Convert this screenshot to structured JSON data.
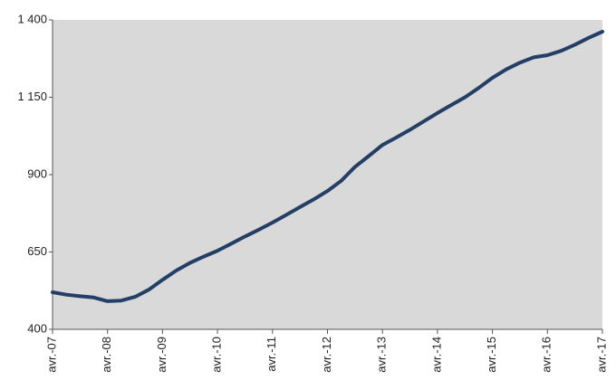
{
  "chart_data": {
    "type": "line",
    "categories": [
      "avr.-07",
      null,
      null,
      null,
      "avr.-08",
      null,
      null,
      null,
      "avr.-09",
      null,
      null,
      null,
      "avr.-10",
      null,
      null,
      null,
      "avr.-11",
      null,
      null,
      null,
      "avr.-12",
      null,
      null,
      null,
      "avr.-13",
      null,
      null,
      null,
      "avr.-14",
      null,
      null,
      null,
      "avr.-15",
      null,
      null,
      null,
      "avr.-16",
      null,
      null,
      null,
      "avr.-17"
    ],
    "series": [
      {
        "color": "#243f66",
        "values": [
          520,
          512,
          507,
          503,
          491,
          493,
          505,
          528,
          560,
          590,
          615,
          635,
          654,
          677,
          700,
          722,
          745,
          770,
          795,
          820,
          847,
          880,
          925,
          960,
          996,
          1020,
          1045,
          1072,
          1099,
          1125,
          1150,
          1180,
          1213,
          1240,
          1262,
          1279,
          1286,
          1300,
          1320,
          1342,
          1362
        ]
      }
    ],
    "ylim": [
      400,
      1400
    ],
    "yticks": [
      400,
      650,
      900,
      {
        "value": 1150,
        "label": "1 150"
      },
      {
        "value": 1400,
        "label": "1 400"
      }
    ],
    "grid": false,
    "plot_background": "#d9d9d9"
  }
}
